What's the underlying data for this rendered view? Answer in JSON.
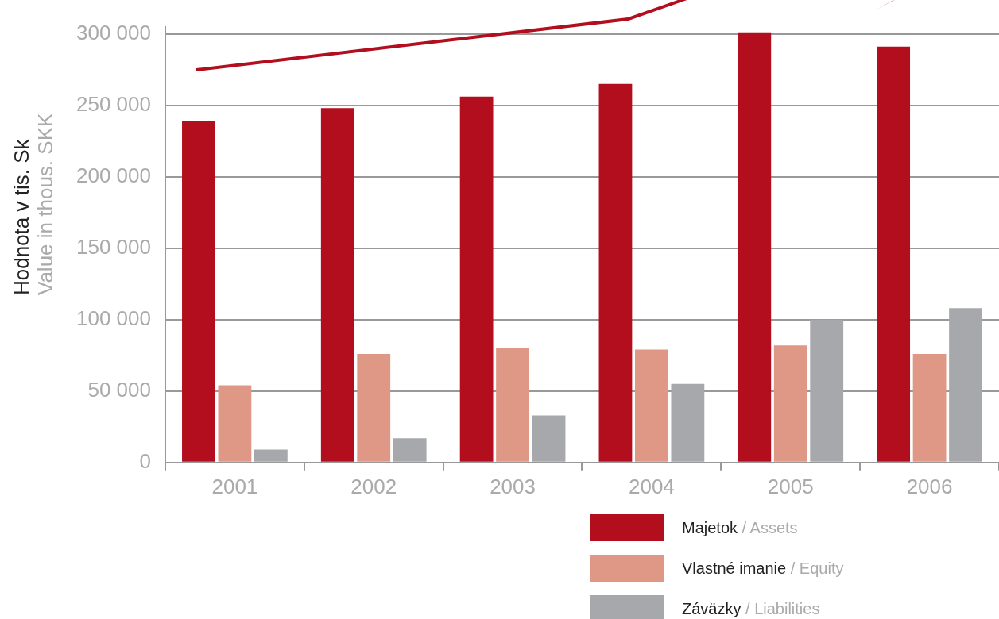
{
  "chart_data": {
    "type": "bar",
    "ylabel": "Hodnota v tis. Sk\nValue in thous. SKK",
    "categories": [
      "2001",
      "2002",
      "2003",
      "2004",
      "2005",
      "2006"
    ],
    "series": [
      {
        "name": "Majetok / Assets",
        "color": "#b30e1e",
        "values": [
          239000,
          248000,
          256000,
          265000,
          301000,
          291000
        ]
      },
      {
        "name": "Vlastné imanie / Equity",
        "color": "#df9886",
        "values": [
          54000,
          76000,
          80000,
          79000,
          82000,
          76000
        ]
      },
      {
        "name": "Záväzky / Liabilities",
        "color": "#a7a8ab",
        "values": [
          9000,
          17000,
          33000,
          55000,
          100000,
          108000
        ]
      }
    ],
    "ylim": [
      0,
      305000
    ],
    "yticks": [
      {
        "value": 0,
        "label": "0"
      },
      {
        "value": 50000,
        "label": "50 000"
      },
      {
        "value": 100000,
        "label": "100 000"
      },
      {
        "value": 150000,
        "label": "150 000"
      },
      {
        "value": 200000,
        "label": "200 000"
      },
      {
        "value": 250000,
        "label": "250 000"
      },
      {
        "value": 300000,
        "label": "300 000"
      }
    ],
    "grid": "y",
    "legend": "bottom right"
  }
}
